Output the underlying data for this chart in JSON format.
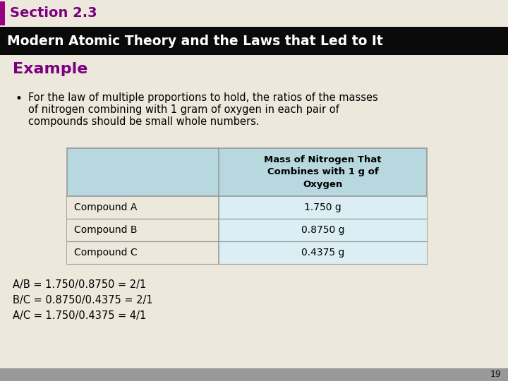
{
  "section_title": "Section 2.3",
  "main_title": "Modern Atomic Theory and the Laws that Led to It",
  "example_label": "Example",
  "bullet_line1": "For the law of multiple proportions to hold, the ratios of the masses",
  "bullet_line2": "of nitrogen combining with 1 gram of oxygen in each pair of",
  "bullet_line3": "compounds should be small whole numbers.",
  "table_header_col2": "Mass of Nitrogen That\nCombines with 1 g of\nOxygen",
  "table_rows": [
    [
      "Compound A",
      "1.750 g"
    ],
    [
      "Compound B",
      "0.8750 g"
    ],
    [
      "Compound C",
      "0.4375 g"
    ]
  ],
  "ratios": [
    "A/B = 1.750/0.8750 = 2/1",
    "B/C = 0.8750/0.4375 = 2/1",
    "A/C = 1.750/0.4375 = 4/1"
  ],
  "bg_color": "#ede8dc",
  "header_bar_color": "#0a0a0a",
  "section_bar_color": "#9b0082",
  "section_title_color": "#7b0080",
  "main_title_color": "#ffffff",
  "example_color": "#7b0080",
  "table_header_bg": "#b8d8e0",
  "table_row_bg_alt": "#daeef3",
  "table_row_bg_plain": "#f2f2f2",
  "table_border_color": "#999999",
  "footer_bg": "#999999",
  "page_number": "19"
}
